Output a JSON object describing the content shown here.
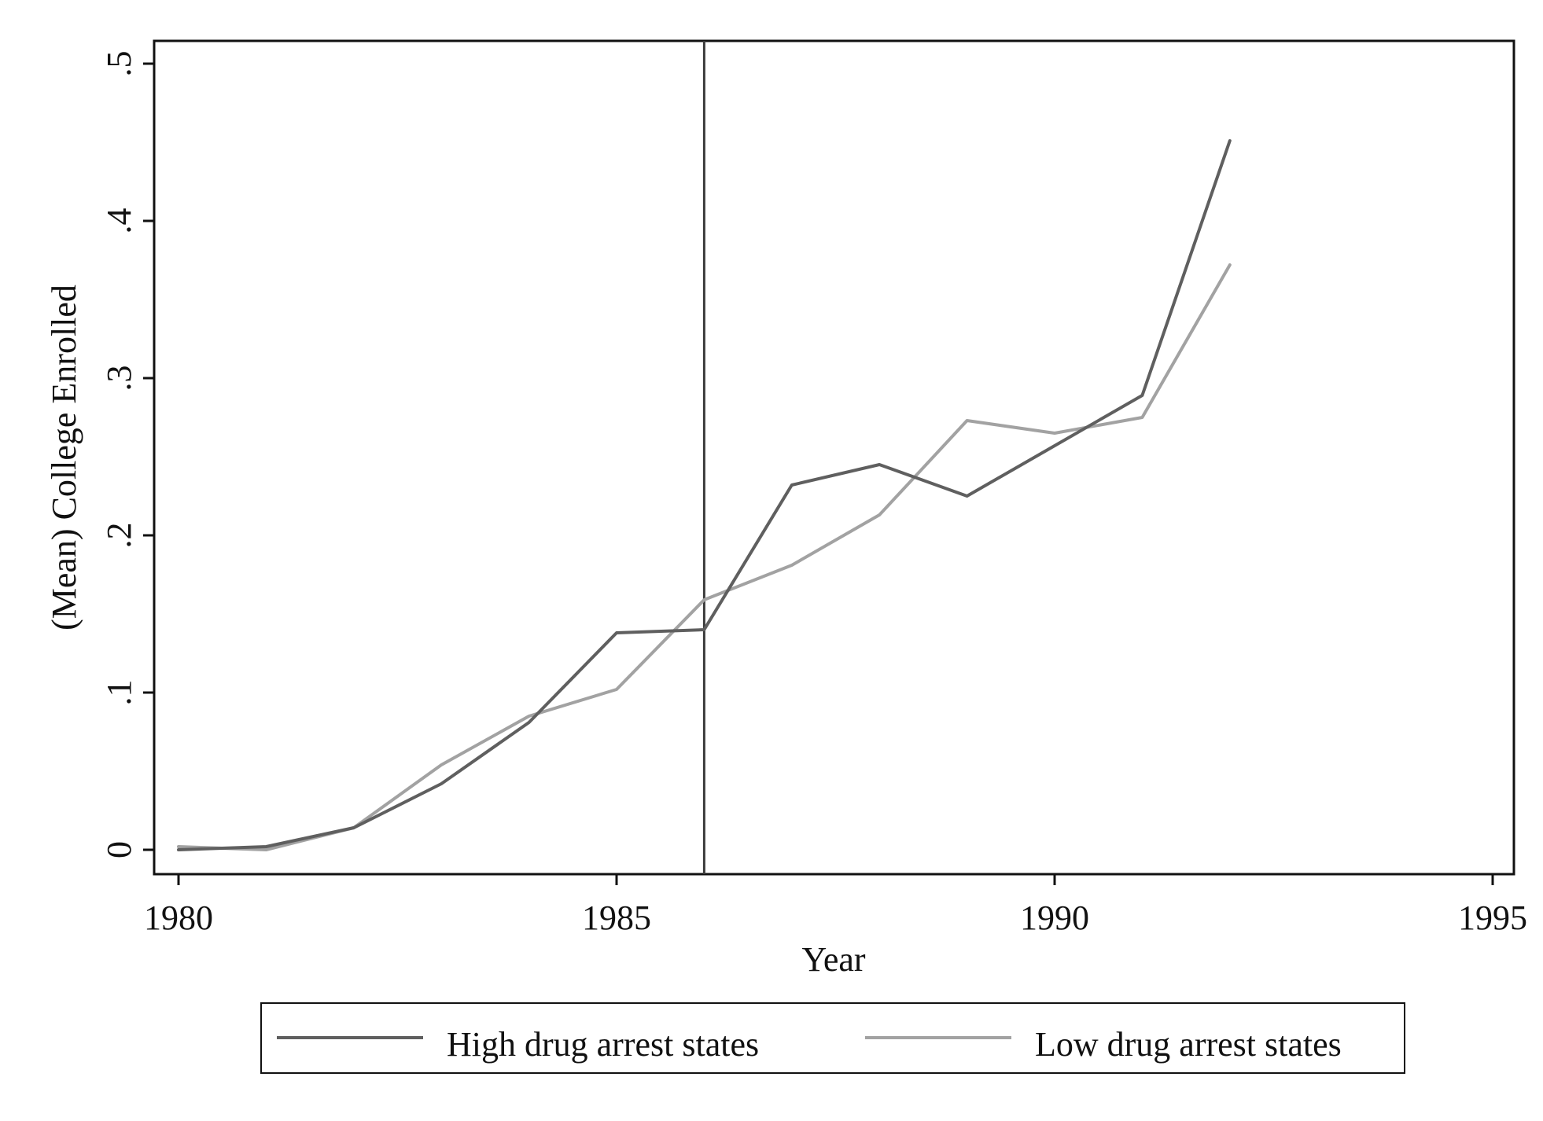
{
  "chart_data": {
    "type": "line",
    "title": "",
    "xlabel": "Year",
    "ylabel": "(Mean) College Enrolled",
    "xlim": [
      1980,
      1995
    ],
    "ylim": [
      0,
      0.5
    ],
    "xticks": [
      1980,
      1985,
      1990,
      1995
    ],
    "xtick_labels": [
      "1980",
      "1985",
      "1990",
      "1995"
    ],
    "yticks": [
      0,
      0.1,
      0.2,
      0.3,
      0.4,
      0.5
    ],
    "ytick_labels": [
      "0",
      ".1",
      ".2",
      ".3",
      ".4",
      ".5"
    ],
    "grid": false,
    "legend_position": "bottom",
    "vertical_reference_line": {
      "x": 1986,
      "color": "#3c3c3c"
    },
    "series": [
      {
        "name": "High drug arrest states",
        "color": "#5f5f5f",
        "x": [
          1980,
          1981,
          1982,
          1983,
          1984,
          1985,
          1986,
          1987,
          1988,
          1989,
          1990,
          1991,
          1992
        ],
        "y": [
          0.0,
          0.002,
          0.014,
          0.042,
          0.081,
          0.138,
          0.14,
          0.232,
          0.245,
          0.225,
          0.257,
          0.289,
          0.451
        ]
      },
      {
        "name": "Low drug arrest states",
        "color": "#a2a2a2",
        "x": [
          1980,
          1981,
          1982,
          1983,
          1984,
          1985,
          1986,
          1987,
          1988,
          1989,
          1990,
          1991,
          1992
        ],
        "y": [
          0.002,
          0.0,
          0.014,
          0.054,
          0.085,
          0.102,
          0.159,
          0.181,
          0.213,
          0.273,
          0.265,
          0.275,
          0.372
        ]
      }
    ]
  }
}
